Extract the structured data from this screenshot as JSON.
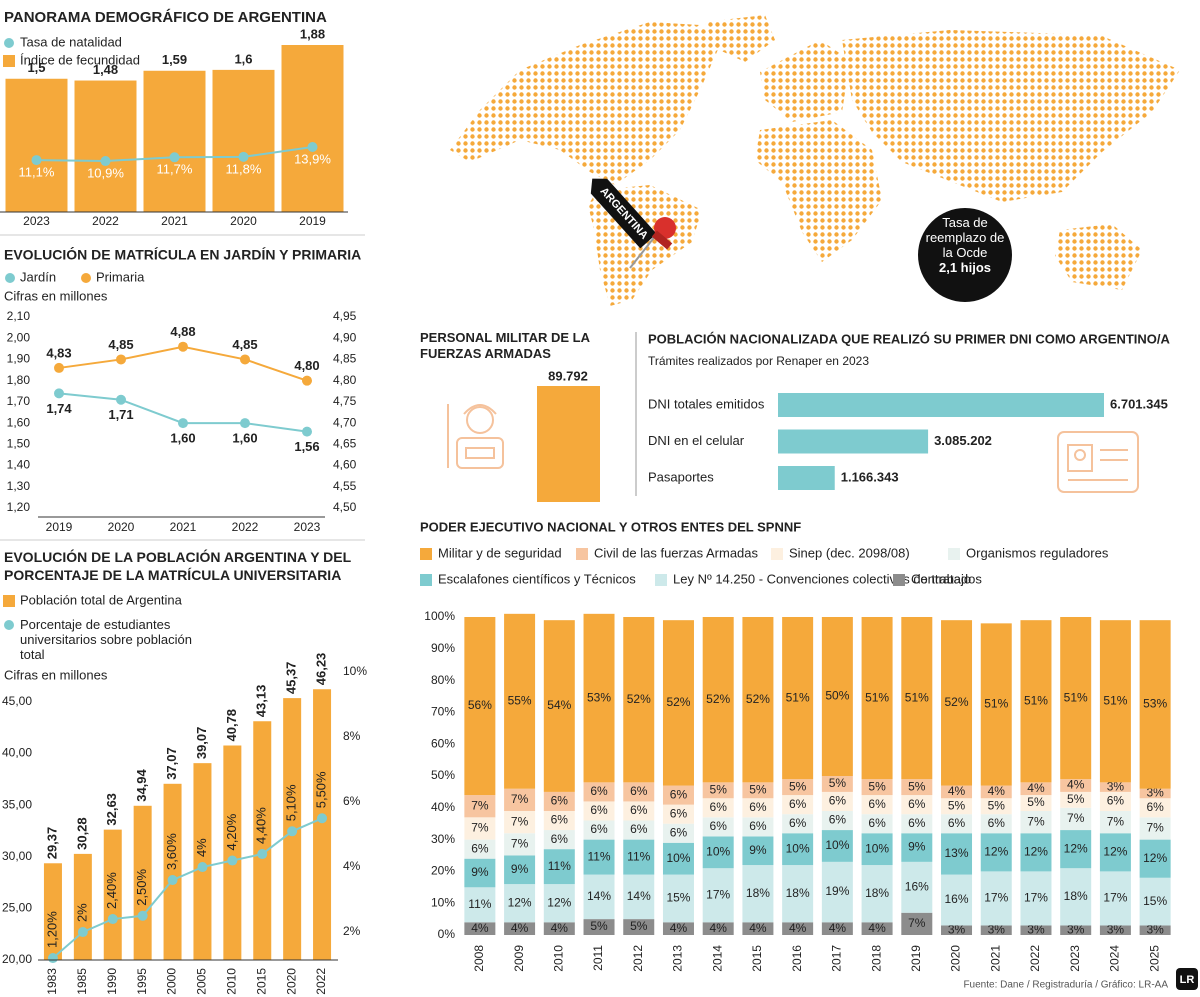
{
  "chart_data": [
    {
      "type": "combo",
      "title": "PANORAMA DEMOGRÁFICO DE ARGENTINA",
      "categories": [
        "2023",
        "2022",
        "2021",
        "2020",
        "2019"
      ],
      "series": [
        {
          "name": "Tasa de natalidad",
          "type": "line",
          "color": "#7ecbcf",
          "values": [
            11.1,
            10.9,
            11.7,
            11.8,
            13.9
          ],
          "value_labels": [
            "11,1%",
            "10,9%",
            "11,7%",
            "11,8%",
            "13,9%"
          ]
        },
        {
          "name": "Índice de fecundidad",
          "type": "bar",
          "color": "#f5a93b",
          "values": [
            1.5,
            1.48,
            1.59,
            1.6,
            1.88
          ],
          "value_labels": [
            "1,5",
            "1,48",
            "1,59",
            "1,6",
            "1,88"
          ]
        }
      ]
    },
    {
      "type": "line",
      "title": "EVOLUCIÓN DE MATRÍCULA EN JARDÍN Y PRIMARIA",
      "subtitle": "Cifras en millones",
      "categories": [
        "2019",
        "2020",
        "2021",
        "2022",
        "2023"
      ],
      "series": [
        {
          "name": "Jardín",
          "color": "#7ecbcf",
          "values": [
            1.74,
            1.71,
            1.6,
            1.6,
            1.56
          ],
          "value_labels": [
            "1,74",
            "1,71",
            "1,60",
            "1,60",
            "1,56"
          ]
        },
        {
          "name": "Primaria",
          "color": "#f5a93b",
          "axis": "y2",
          "values": [
            4.83,
            4.85,
            4.88,
            4.85,
            4.8
          ],
          "value_labels": [
            "4,83",
            "4,85",
            "4,88",
            "4,85",
            "4,80"
          ]
        }
      ],
      "ylim": [
        1.2,
        2.1
      ],
      "yticks": [
        {
          "value": 1.2,
          "label": "1,20"
        },
        {
          "value": 1.3,
          "label": "1,30"
        },
        {
          "value": 1.4,
          "label": "1,40"
        },
        {
          "value": 1.5,
          "label": "1,50"
        },
        {
          "value": 1.6,
          "label": "1,60"
        },
        {
          "value": 1.7,
          "label": "1,70"
        },
        {
          "value": 1.8,
          "label": "1,80"
        },
        {
          "value": 1.9,
          "label": "1,90"
        },
        {
          "value": 2.0,
          "label": "2,00"
        },
        {
          "value": 2.1,
          "label": "2,10"
        }
      ],
      "y2lim": [
        4.5,
        4.95
      ],
      "y2ticks": [
        {
          "value": 4.5,
          "label": "4,50"
        },
        {
          "value": 4.55,
          "label": "4,55"
        },
        {
          "value": 4.6,
          "label": "4,60"
        },
        {
          "value": 4.65,
          "label": "4,65"
        },
        {
          "value": 4.7,
          "label": "4,70"
        },
        {
          "value": 4.75,
          "label": "4,75"
        },
        {
          "value": 4.8,
          "label": "4,80"
        },
        {
          "value": 4.85,
          "label": "4,85"
        },
        {
          "value": 4.9,
          "label": "4,90"
        },
        {
          "value": 4.95,
          "label": "4,95"
        }
      ]
    },
    {
      "type": "combo",
      "title": "EVOLUCIÓN DE LA POBLACIÓN ARGENTINA Y DEL PORCENTAJE DE LA MATRÍCULA UNIVERSITARIA",
      "subtitle": "Cifras en millones",
      "categories": [
        "1983",
        "1985",
        "1990",
        "1995",
        "2000",
        "2005",
        "2010",
        "2015",
        "2020",
        "2022"
      ],
      "series": [
        {
          "name": "Población total de Argentina",
          "type": "bar",
          "color": "#f5a93b",
          "values": [
            29.37,
            30.28,
            32.63,
            34.94,
            37.07,
            39.07,
            40.78,
            43.13,
            45.37,
            46.23
          ],
          "value_labels": [
            "29,37",
            "30,28",
            "32,63",
            "34,94",
            "37,07",
            "39,07",
            "40,78",
            "43,13",
            "45,37",
            "46,23"
          ]
        },
        {
          "name": "Porcentaje de estudiantes universitarios sobre población total",
          "type": "line",
          "axis": "y2",
          "color": "#7ecbcf",
          "values": [
            1.2,
            2,
            2.4,
            2.5,
            3.6,
            4,
            4.2,
            4.4,
            5.1,
            5.5
          ],
          "value_labels": [
            "1,20%",
            "2%",
            "2,40%",
            "2,50%",
            "3,60%",
            "4%",
            "4,20%",
            "4,40%",
            "5,10%",
            "5,50%"
          ]
        }
      ],
      "ylim": [
        20,
        47.9
      ],
      "yticks": [
        {
          "value": 20,
          "label": "20,00"
        },
        {
          "value": 25,
          "label": "25,00"
        },
        {
          "value": 30,
          "label": "30,00"
        },
        {
          "value": 35,
          "label": "35,00"
        },
        {
          "value": 40,
          "label": "40,00"
        },
        {
          "value": 45,
          "label": "45,00"
        }
      ],
      "y2lim": [
        1.14,
        10
      ],
      "y2ticks": [
        {
          "value": 2,
          "label": "2%"
        },
        {
          "value": 4,
          "label": "4%"
        },
        {
          "value": 6,
          "label": "6%"
        },
        {
          "value": 8,
          "label": "8%"
        },
        {
          "value": 10,
          "label": "10%"
        }
      ]
    },
    {
      "type": "bar",
      "title": "PERSONAL MILITAR DE LA FUERZAS ARMADAS",
      "values": [
        89792
      ],
      "value_labels": [
        "89.792"
      ],
      "color": "#f5a93b"
    },
    {
      "type": "barh",
      "title": "POBLACIÓN NACIONALIZADA QUE REALIZÓ SU PRIMER DNI COMO ARGENTINO/A",
      "subtitle": "Trámites realizados por Renaper en 2023",
      "categories": [
        "DNI totales emitidos",
        "DNI en el celular",
        "Pasaportes"
      ],
      "values": [
        6701345,
        3085202,
        1166343
      ],
      "value_labels": [
        "6.701.345",
        "3.085.202",
        "1.166.343"
      ],
      "color": "#7ecbcf"
    },
    {
      "type": "stacked",
      "title": "PODER EJECUTIVO NACIONAL Y OTROS ENTES DEL SPNNF",
      "categories": [
        "2008",
        "2009",
        "2010",
        "2011",
        "2012",
        "2013",
        "2014",
        "2015",
        "2016",
        "2017",
        "2018",
        "2019",
        "2020",
        "2021",
        "2022",
        "2023",
        "2024",
        "2025"
      ],
      "series": [
        {
          "name": "Militar y de seguridad",
          "color": "#f5a93b",
          "values": [
            56,
            55,
            54,
            53,
            52,
            52,
            52,
            52,
            51,
            50,
            51,
            51,
            52,
            51,
            51,
            51,
            51,
            53
          ],
          "value_labels": [
            "56%",
            "55%",
            "54%",
            "53%",
            "52%",
            "52%",
            "52%",
            "52%",
            "51%",
            "50%",
            "51%",
            "51%",
            "52%",
            "51%",
            "51%",
            "51%",
            "51%",
            "53%"
          ]
        },
        {
          "name": "Civil de las fuerzas Armadas",
          "color": "#f7c5a0",
          "values": [
            7,
            7,
            6,
            6,
            6,
            6,
            5,
            5,
            5,
            5,
            5,
            5,
            4,
            4,
            4,
            4,
            3,
            3
          ],
          "value_labels": [
            "7%",
            "7%",
            "6%",
            "6%",
            "6%",
            "6%",
            "5%",
            "5%",
            "5%",
            "5%",
            "5%",
            "5%",
            "4%",
            "4%",
            "4%",
            "4%",
            "3%",
            "3%"
          ]
        },
        {
          "name": "Sinep (dec. 2098/08)",
          "color": "#fdf0e0",
          "values": [
            7,
            7,
            6,
            6,
            6,
            6,
            6,
            6,
            6,
            6,
            6,
            6,
            5,
            5,
            5,
            5,
            6,
            6
          ],
          "value_labels": [
            "7%",
            "7%",
            "6%",
            "6%",
            "6%",
            "6%",
            "6%",
            "6%",
            "6%",
            "6%",
            "6%",
            "6%",
            "5%",
            "5%",
            "5%",
            "5%",
            "6%",
            "6%"
          ]
        },
        {
          "name": "Organismos reguladores",
          "color": "#e8f2ef",
          "values": [
            6,
            7,
            6,
            6,
            6,
            6,
            6,
            6,
            6,
            6,
            6,
            6,
            6,
            6,
            7,
            7,
            7,
            7
          ],
          "value_labels": [
            "6%",
            "7%",
            "6%",
            "6%",
            "6%",
            "6%",
            "6%",
            "6%",
            "6%",
            "6%",
            "6%",
            "6%",
            "6%",
            "6%",
            "7%",
            "7%",
            "7%",
            "7%"
          ]
        },
        {
          "name": "Escalafones científicos y Técnicos",
          "color": "#7ecbcf",
          "values": [
            9,
            9,
            11,
            11,
            11,
            10,
            10,
            9,
            10,
            10,
            10,
            9,
            13,
            12,
            12,
            12,
            12,
            12
          ],
          "value_labels": [
            "9%",
            "9%",
            "11%",
            "11%",
            "11%",
            "10%",
            "10%",
            "9%",
            "10%",
            "10%",
            "10%",
            "9%",
            "13%",
            "12%",
            "12%",
            "12%",
            "12%",
            "12%"
          ]
        },
        {
          "name": "Ley Nº 14.250 - Convenciones colectivas de trabajo",
          "color": "#cde9ea",
          "values": [
            11,
            12,
            12,
            14,
            14,
            15,
            17,
            18,
            18,
            19,
            18,
            16,
            16,
            17,
            17,
            18,
            17,
            15
          ],
          "value_labels": [
            "11%",
            "12%",
            "12%",
            "14%",
            "14%",
            "15%",
            "17%",
            "18%",
            "18%",
            "19%",
            "18%",
            "16%",
            "16%",
            "17%",
            "17%",
            "18%",
            "17%",
            "15%"
          ]
        },
        {
          "name": "Contratados",
          "color": "#8c8c8c",
          "values": [
            4,
            4,
            4,
            5,
            5,
            4,
            4,
            4,
            4,
            4,
            4,
            7,
            3,
            3,
            3,
            3,
            3,
            3
          ],
          "value_labels": [
            "4%",
            "4%",
            "4%",
            "5%",
            "5%",
            "4%",
            "4%",
            "4%",
            "4%",
            "4%",
            "4%",
            "7%",
            "3%",
            "3%",
            "3%",
            "3%",
            "3%",
            "3%"
          ]
        }
      ],
      "ylim": [
        0,
        100
      ],
      "yticks": [
        {
          "value": 0,
          "label": "0%"
        },
        {
          "value": 10,
          "label": "10%"
        },
        {
          "value": 20,
          "label": "20%"
        },
        {
          "value": 30,
          "label": "30%"
        },
        {
          "value": 40,
          "label": "40%"
        },
        {
          "value": 50,
          "label": "50%"
        },
        {
          "value": 60,
          "label": "60%"
        },
        {
          "value": 70,
          "label": "70%"
        },
        {
          "value": 80,
          "label": "80%"
        },
        {
          "value": 90,
          "label": "90%"
        },
        {
          "value": 100,
          "label": "100%"
        }
      ]
    }
  ],
  "map": {
    "label": "ARGENTINA",
    "note": "Tasa de reemplazo de la Ocde",
    "note_value": "2,1 hijos"
  },
  "source": "Fuente: Dane / Registraduría / Gráfico: LR-AA",
  "logo": "LR"
}
